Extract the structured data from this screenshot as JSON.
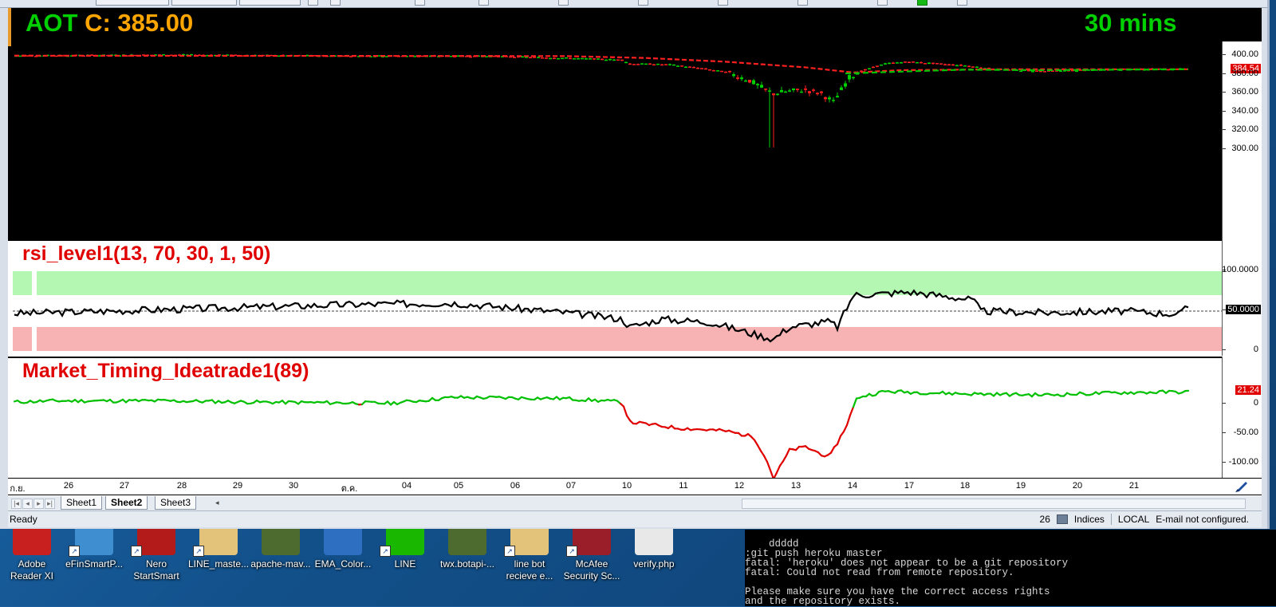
{
  "window": {
    "symbol_ticker": "AOT",
    "symbol_price": "C: 385.00",
    "timeframe": "30 mins",
    "last_price_tag": "384.54"
  },
  "price_axis": {
    "labels": [
      "400.00",
      "380.00",
      "360.00",
      "340.00",
      "320.00",
      "300.00"
    ],
    "values": [
      400,
      380,
      360,
      340,
      320,
      300
    ]
  },
  "rsi_pane": {
    "title": "rsi_level1(13, 70, 30, 1, 50)",
    "axis_labels": [
      "100.0000",
      "50.0000",
      "0"
    ],
    "tag": "50.0000",
    "overbought": 70,
    "oversold": 30,
    "midline": 50,
    "colors": {
      "overbought_zone": "#b3f7b3",
      "oversold_zone": "#f7b3b3",
      "line": "#000000"
    }
  },
  "mt_pane": {
    "title": "Market_Timing_Ideatrade1(89)",
    "axis_labels": [
      "0",
      "-50.00",
      "-100.00"
    ],
    "tag": "21.24",
    "colors": {
      "positive": "#00c000",
      "negative": "#e00000"
    }
  },
  "date_axis": {
    "labels": [
      "ก.ย.",
      "26",
      "27",
      "28",
      "29",
      "30",
      "ต.ค.",
      "04",
      "05",
      "06",
      "07",
      "10",
      "11",
      "12",
      "13",
      "14",
      "17",
      "18",
      "19",
      "20",
      "21"
    ]
  },
  "sheets": {
    "tabs": [
      "Sheet1",
      "Sheet2",
      "Sheet3"
    ],
    "active": "Sheet2"
  },
  "status_bar": {
    "ready": "Ready",
    "count": "26",
    "market": "Indices",
    "mode": "LOCAL",
    "email": "E-mail not configured."
  },
  "desktop_icons": [
    {
      "label": "Adobe Reader XI",
      "color": "#c8201e",
      "icon": "pdf-icon"
    },
    {
      "label": "eFinSmartP...",
      "color": "#3f8fd0",
      "icon": "app-icon"
    },
    {
      "label": "Nero StartSmart",
      "color": "#b31a1a",
      "icon": "disc-icon"
    },
    {
      "label": "LINE_maste...",
      "color": "#e3c27a",
      "icon": "folder-icon"
    },
    {
      "label": "apache-mav...",
      "color": "#4d6b2e",
      "icon": "archive-icon"
    },
    {
      "label": "EMA_Color...",
      "color": "#2f6fc2",
      "icon": "chart-icon"
    },
    {
      "label": "LINE",
      "color": "#19b700",
      "icon": "line-app-icon"
    },
    {
      "label": "twx.botapi-...",
      "color": "#4d6b2e",
      "icon": "archive-icon"
    },
    {
      "label": "line bot recieve e...",
      "color": "#e3c27a",
      "icon": "folder-icon"
    },
    {
      "label": "McAfee Security Sc...",
      "color": "#9a1e2a",
      "icon": "shield-icon"
    },
    {
      "label": "verify.php",
      "color": "#e8e8e8",
      "icon": "code-file-icon"
    }
  ],
  "console": {
    "lines": [
      "    ddddd",
      ":git push heroku master",
      "fatal: 'heroku' does not appear to be a git repository",
      "fatal: Could not read from remote repository.",
      "",
      "Please make sure you have the correct access rights",
      "and the repository exists."
    ]
  }
}
